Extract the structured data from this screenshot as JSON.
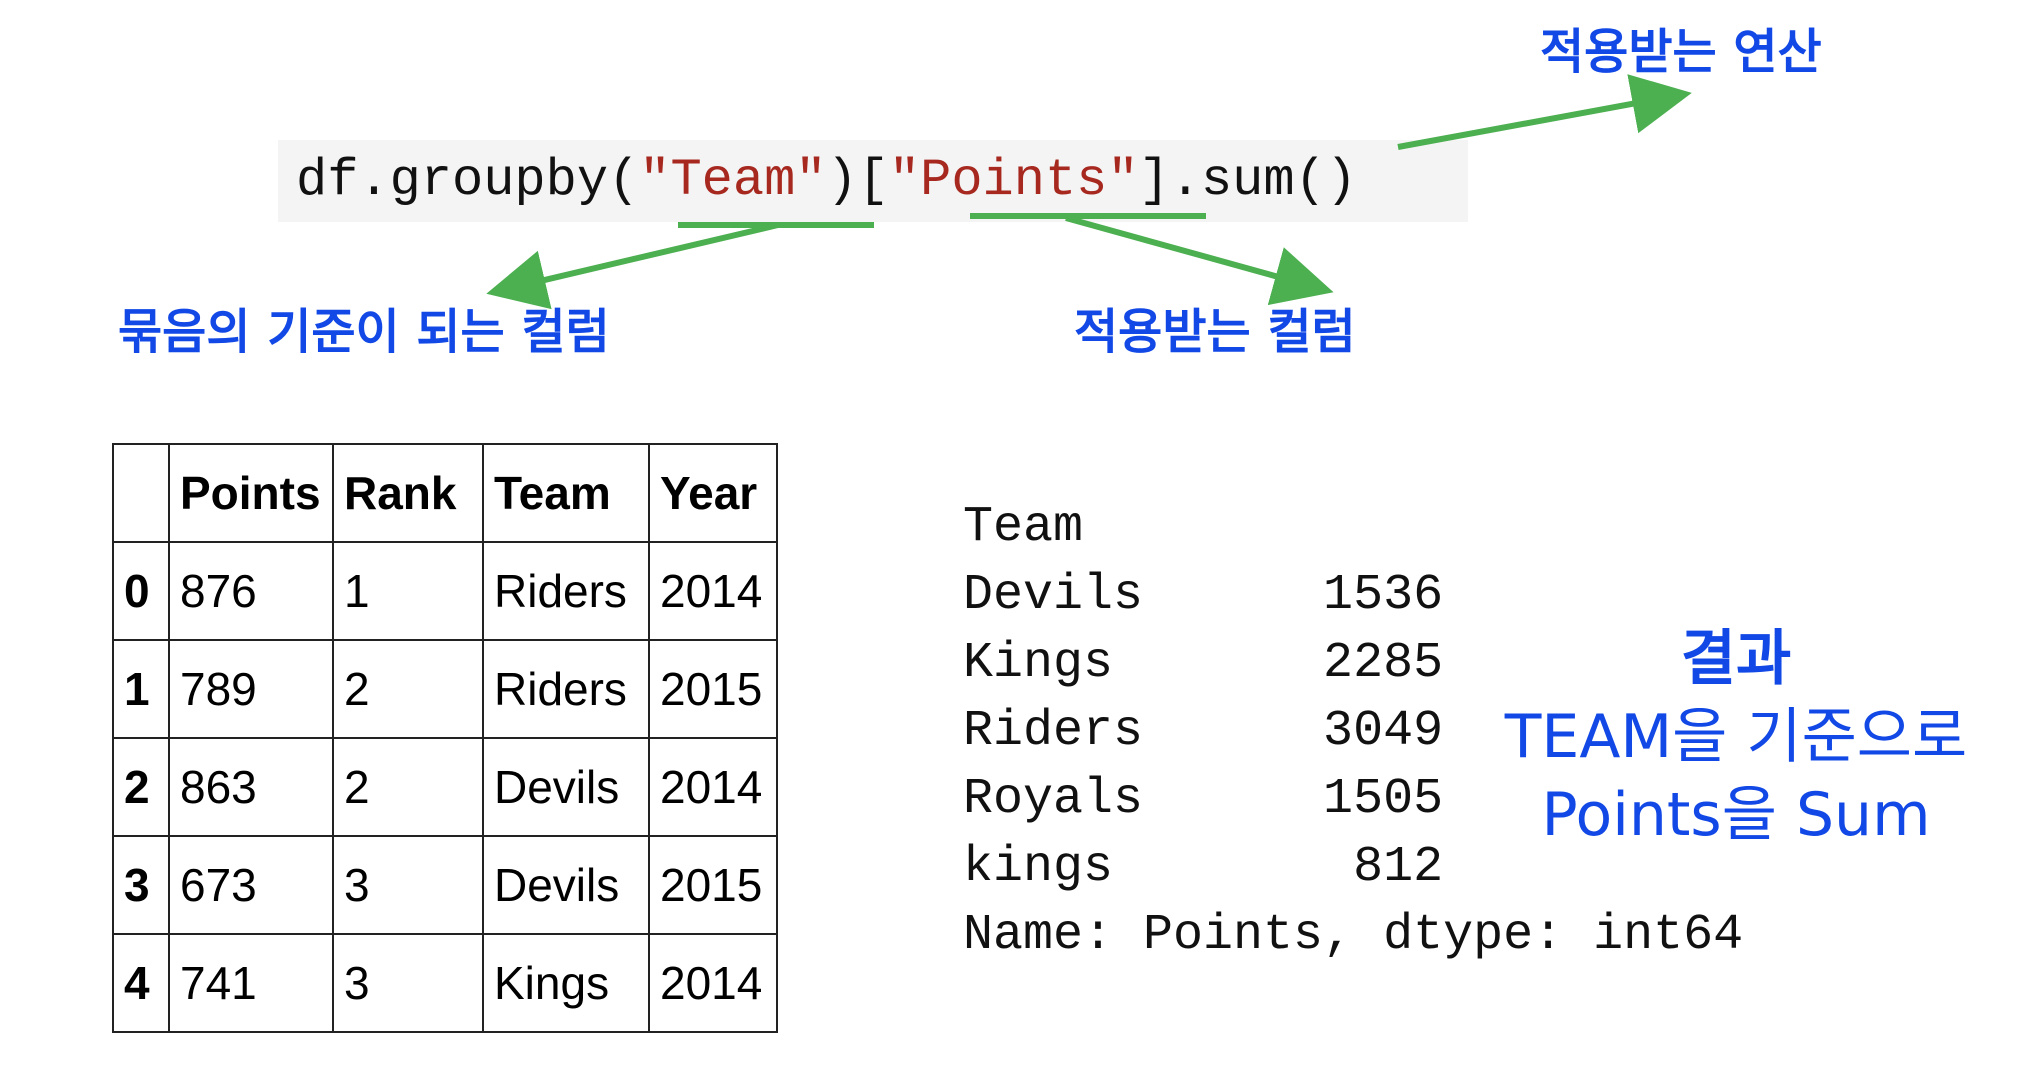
{
  "annotations": {
    "applied_operation": "적용받는 연산",
    "group_key_column": "묶음의 기준이 되는 컬럼",
    "applied_column": "적용받는 컬럼"
  },
  "code": {
    "part1": "df.groupby(",
    "key": "\"Team\"",
    "part2": ")[",
    "column": "\"Points\"",
    "part3": "].sum()"
  },
  "table": {
    "headers": [
      "",
      "Points",
      "Rank",
      "Team",
      "Year"
    ],
    "rows": [
      [
        "0",
        "876",
        "1",
        "Riders",
        "2014"
      ],
      [
        "1",
        "789",
        "2",
        "Riders",
        "2015"
      ],
      [
        "2",
        "863",
        "2",
        "Devils",
        "2014"
      ],
      [
        "3",
        "673",
        "3",
        "Devils",
        "2015"
      ],
      [
        "4",
        "741",
        "3",
        "Kings",
        "2014"
      ]
    ]
  },
  "output": {
    "lines": [
      "Team",
      "Devils      1536",
      "Kings       2285",
      "Riders      3049",
      "Royals      1505",
      "kings        812",
      "Name: Points, dtype: int64"
    ]
  },
  "result": {
    "line1": "결과",
    "line2": "TEAM을 기준으로",
    "line3": "Points을 Sum"
  },
  "colors": {
    "annotation_blue": "#1248e6",
    "arrow_green": "#4caf50",
    "string_red": "#a6281f",
    "code_background": "#f4f4f4"
  }
}
